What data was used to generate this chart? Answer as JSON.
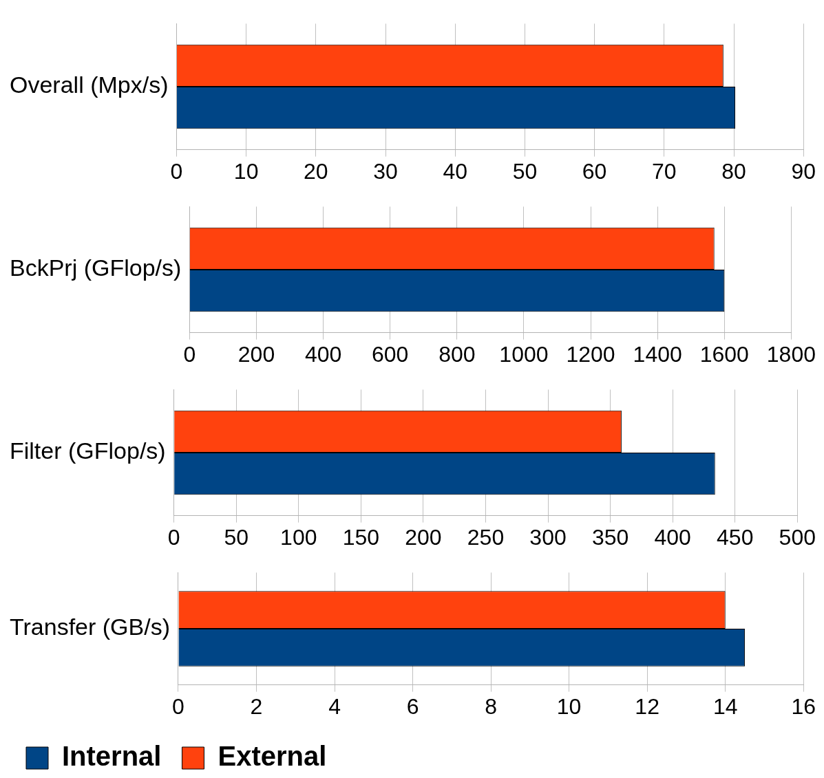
{
  "chart_data": [
    {
      "type": "bar",
      "orientation": "horizontal",
      "categories": [
        "Overall (Mpx/s)"
      ],
      "series": [
        {
          "color": "#004586",
          "values": [
            80.2
          ]
        },
        {
          "color": "#ff420e",
          "values": [
            78.5
          ]
        }
      ],
      "xlim": [
        0,
        90
      ],
      "xticks": [
        0,
        10,
        20,
        30,
        40,
        50,
        60,
        70,
        80,
        90
      ],
      "grid": "x",
      "legend": false
    },
    {
      "type": "bar",
      "orientation": "horizontal",
      "categories": [
        "BckPrj (GFlop/s)"
      ],
      "series": [
        {
          "color": "#004586",
          "values": [
            1600
          ]
        },
        {
          "color": "#ff420e",
          "values": [
            1570
          ]
        }
      ],
      "xlim": [
        0,
        1800
      ],
      "xticks": [
        0,
        200,
        400,
        600,
        800,
        1000,
        1200,
        1400,
        1600,
        1800
      ],
      "grid": "x",
      "legend": false
    },
    {
      "type": "bar",
      "orientation": "horizontal",
      "categories": [
        "Filter (GFlop/s)"
      ],
      "series": [
        {
          "color": "#004586",
          "values": [
            434
          ]
        },
        {
          "color": "#ff420e",
          "values": [
            359
          ]
        }
      ],
      "xlim": [
        0,
        500
      ],
      "xticks": [
        0,
        50,
        100,
        150,
        200,
        250,
        300,
        350,
        400,
        450,
        500
      ],
      "grid": "x",
      "legend": false
    },
    {
      "type": "bar",
      "orientation": "horizontal",
      "categories": [
        "Transfer (GB/s)"
      ],
      "series": [
        {
          "name": "Internal",
          "color": "#004586",
          "values": [
            14.5
          ]
        },
        {
          "name": "External",
          "color": "#ff420e",
          "values": [
            14.0
          ]
        }
      ],
      "xlim": [
        0,
        16
      ],
      "xticks": [
        0,
        2,
        4,
        6,
        8,
        10,
        12,
        14,
        16
      ],
      "grid": "x",
      "legend": "bottom left"
    }
  ]
}
